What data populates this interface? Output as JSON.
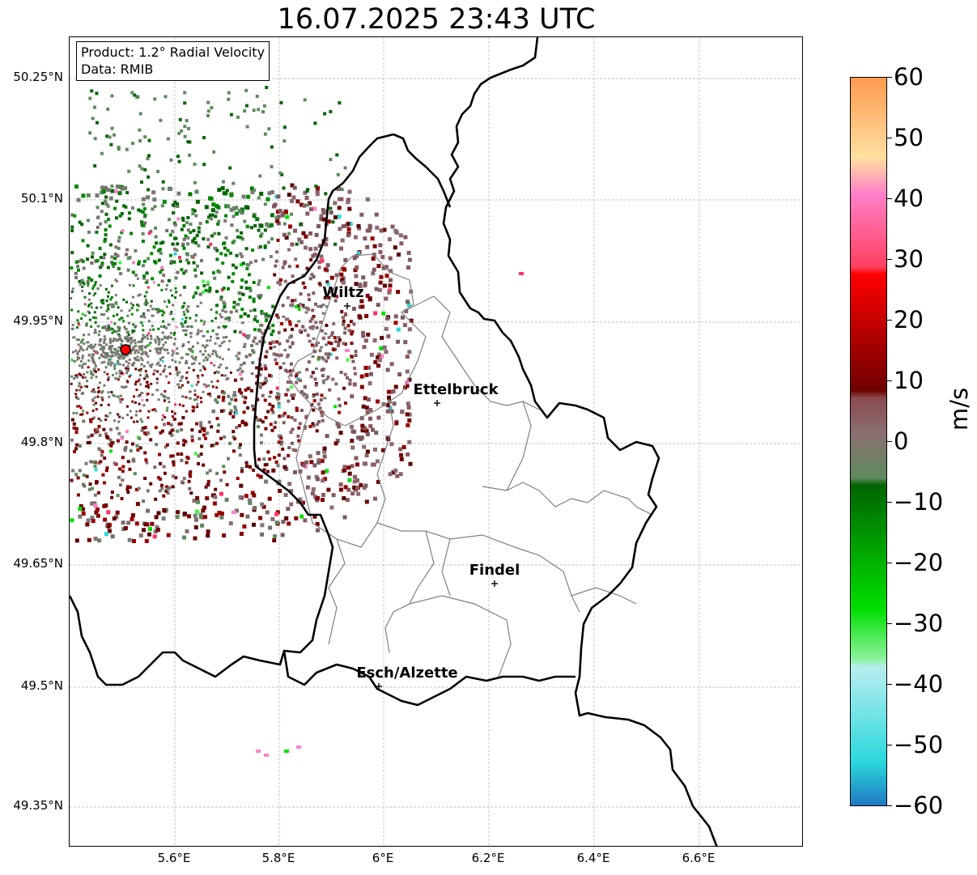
{
  "title": "16.07.2025 23:43 UTC",
  "info": {
    "product": "Product: 1.2° Radial Velocity",
    "data": "Data: RMIB"
  },
  "lat_labels": [
    "50.25°N",
    "50.1°N",
    "49.95°N",
    "49.8°N",
    "49.65°N",
    "49.5°N",
    "49.35°N"
  ],
  "lon_labels": [
    "5.6°E",
    "5.8°E",
    "6°E",
    "6.2°E",
    "6.4°E",
    "6.6°E"
  ],
  "cities": [
    {
      "name": "Wiltz"
    },
    {
      "name": "Ettelbruck"
    },
    {
      "name": "Findel"
    },
    {
      "name": "Esch/Alzette"
    }
  ],
  "radar_site": {
    "name": "radar-site",
    "color": "#ff0000"
  },
  "colorbar": {
    "unit": "m/s",
    "min": -60,
    "max": 60,
    "tick_labels": [
      "60",
      "50",
      "40",
      "30",
      "20",
      "10",
      "0",
      "−10",
      "−20",
      "−30",
      "−40",
      "−50",
      "−60"
    ],
    "colors": {
      "neg_blue": "#1f78c1",
      "neg_cyan": "#2ad9dd",
      "neg_light_cyan": "#b8eef0",
      "neg_light_green": "#8ff2a0",
      "neg_green": "#00e000",
      "neg_dark_green": "#006400",
      "zero_gray_green": "#5e8a5e",
      "zero_gray_brown": "#8a7070",
      "pos_dark_red": "#6e0000",
      "pos_red": "#ff0000",
      "pos_pink": "#ff80c8",
      "pos_peach": "#ffe0a0",
      "pos_orange": "#ff9a50"
    }
  },
  "map_colors": {
    "border": "#000000",
    "canton": "#808080",
    "grid": "#b0b0b0"
  }
}
